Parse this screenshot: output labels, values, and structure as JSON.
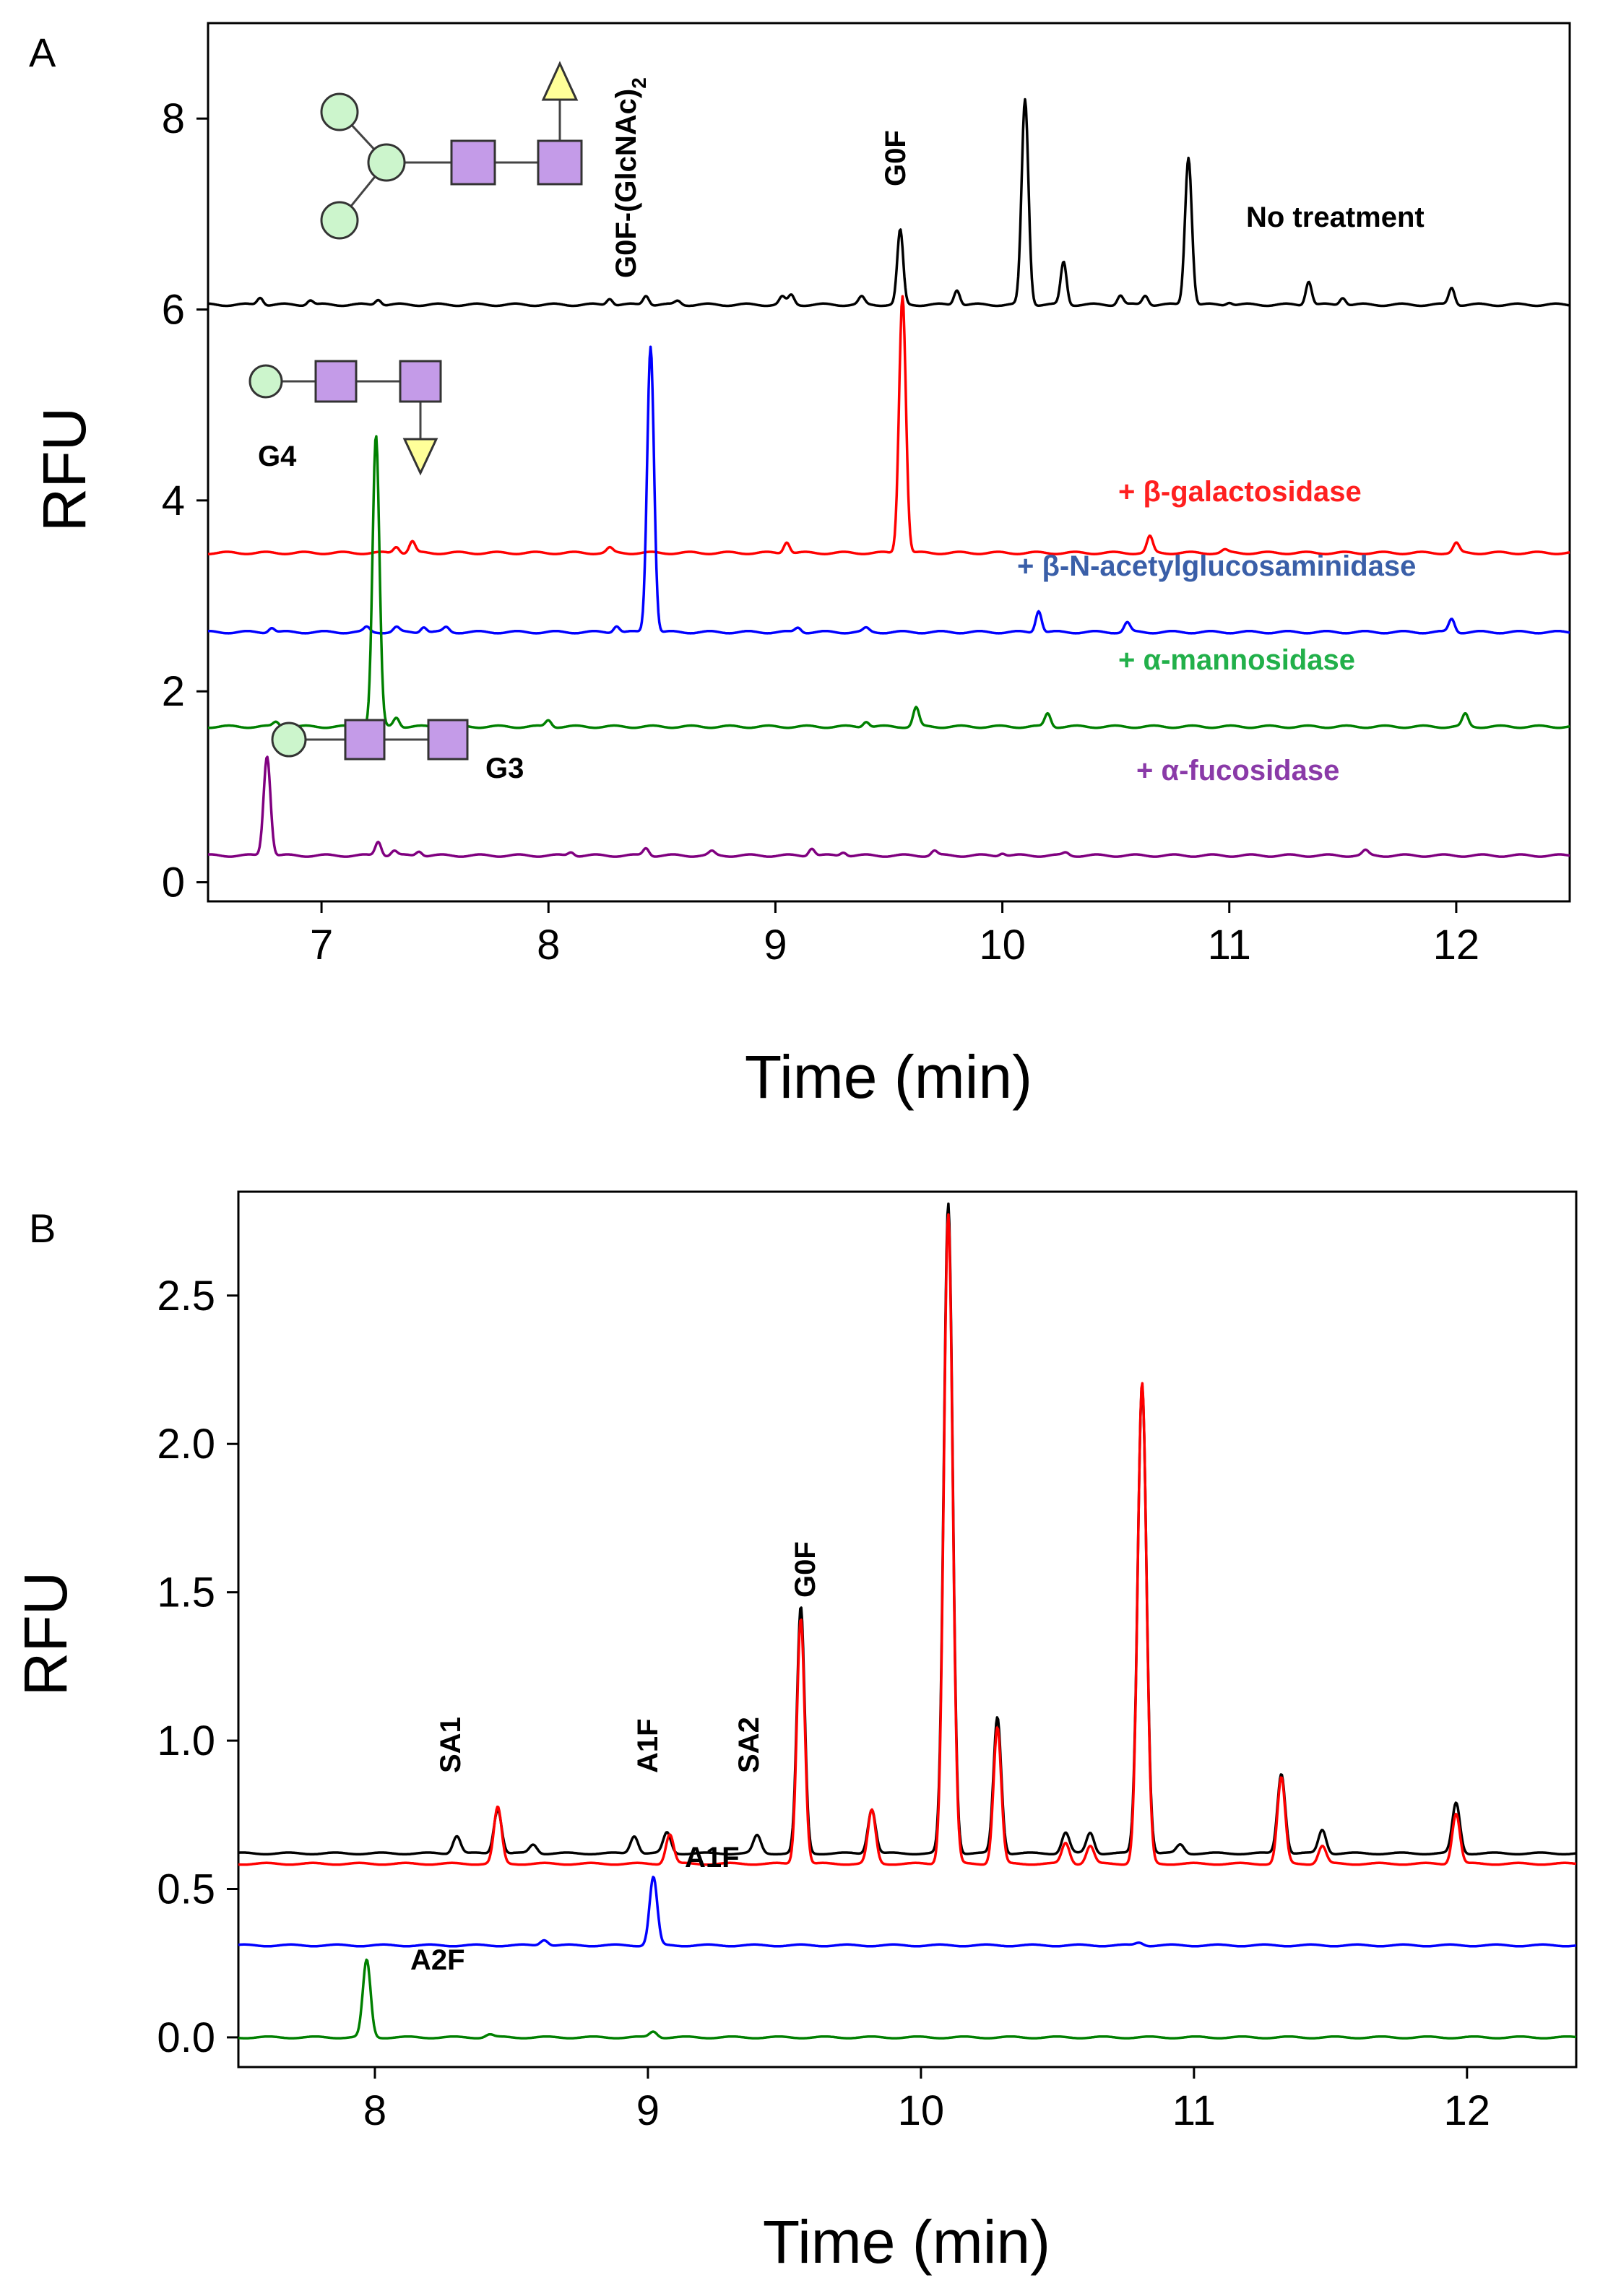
{
  "chart_data": [
    {
      "panel": "A",
      "type": "line",
      "xlabel": "Time (min)",
      "ylabel": "RFU",
      "xlim": [
        6.5,
        12.5
      ],
      "ylim": [
        -0.2,
        9.0
      ],
      "xticks": [
        7,
        8,
        9,
        10,
        11,
        12
      ],
      "yticks": [
        0,
        2,
        4,
        6,
        8
      ],
      "series": [
        {
          "name": "No treatment",
          "color": "#000000",
          "baseline": 6.05,
          "peaks": [
            [
              6.73,
              0.08
            ],
            [
              6.95,
              0.05
            ],
            [
              7.25,
              0.06
            ],
            [
              8.27,
              0.07
            ],
            [
              8.43,
              0.1
            ],
            [
              8.57,
              0.04
            ],
            [
              9.03,
              0.08
            ],
            [
              9.07,
              0.1
            ],
            [
              9.38,
              0.08
            ],
            [
              9.55,
              0.78
            ],
            [
              9.8,
              0.16
            ],
            [
              10.1,
              2.15
            ],
            [
              10.27,
              0.45
            ],
            [
              10.52,
              0.1
            ],
            [
              10.63,
              0.1
            ],
            [
              10.82,
              1.55
            ],
            [
              11.0,
              0.03
            ],
            [
              11.35,
              0.25
            ],
            [
              11.5,
              0.08
            ],
            [
              11.98,
              0.18
            ]
          ]
        },
        {
          "name": "+ β-galactosidase",
          "color": "#ff0000",
          "baseline": 3.45,
          "peaks": [
            [
              7.33,
              0.07
            ],
            [
              7.4,
              0.12
            ],
            [
              8.27,
              0.05
            ],
            [
              9.05,
              0.12
            ],
            [
              9.56,
              2.7
            ],
            [
              10.65,
              0.17
            ],
            [
              10.98,
              0.03
            ],
            [
              12.0,
              0.1
            ]
          ]
        },
        {
          "name": "+ β-N-acetylglucosaminidase",
          "color": "#0000ff",
          "baseline": 2.62,
          "peaks": [
            [
              6.78,
              0.05
            ],
            [
              7.2,
              0.05
            ],
            [
              7.33,
              0.05
            ],
            [
              7.45,
              0.06
            ],
            [
              7.55,
              0.05
            ],
            [
              8.3,
              0.07
            ],
            [
              8.45,
              3.0
            ],
            [
              9.1,
              0.05
            ],
            [
              9.4,
              0.04
            ],
            [
              10.16,
              0.23
            ],
            [
              10.55,
              0.1
            ],
            [
              11.98,
              0.14
            ]
          ]
        },
        {
          "name": "+ α-mannosidase",
          "color": "#008000",
          "baseline": 1.63,
          "peaks": [
            [
              6.8,
              0.05
            ],
            [
              7.24,
              3.05
            ],
            [
              7.33,
              0.1
            ],
            [
              8.0,
              0.07
            ],
            [
              9.4,
              0.06
            ],
            [
              9.62,
              0.2
            ],
            [
              10.2,
              0.14
            ],
            [
              12.04,
              0.13
            ]
          ]
        },
        {
          "name": "+ α-fucosidase",
          "color": "#800080",
          "baseline": 0.28,
          "peaks": [
            [
              6.76,
              1.05
            ],
            [
              7.25,
              0.15
            ],
            [
              7.32,
              0.05
            ],
            [
              7.43,
              0.05
            ],
            [
              8.1,
              0.04
            ],
            [
              8.43,
              0.08
            ],
            [
              8.72,
              0.04
            ],
            [
              9.16,
              0.08
            ],
            [
              9.3,
              0.04
            ],
            [
              9.7,
              0.05
            ],
            [
              10.0,
              0.03
            ],
            [
              10.28,
              0.03
            ],
            [
              11.6,
              0.05
            ]
          ]
        }
      ],
      "annotations": [
        "G0F-(GlcNAc)",
        "2",
        "G0F",
        "No treatment",
        "G4",
        "G3",
        "+ β-galactosidase",
        "+ β-N-acetylglucosaminidase",
        "+ α-mannosidase",
        "+ α-fucosidase"
      ]
    },
    {
      "panel": "B",
      "type": "line",
      "xlabel": "Time (min)",
      "ylabel": "RFU",
      "xlim": [
        7.5,
        12.4
      ],
      "ylim": [
        -0.1,
        2.85
      ],
      "xticks": [
        8,
        9,
        10,
        11,
        12
      ],
      "yticks": [
        "0.0",
        "0.5",
        "1.0",
        "1.5",
        "2.0",
        "2.5"
      ],
      "series": [
        {
          "name": "black trace",
          "color": "#000000",
          "baseline": 0.62,
          "peaks": [
            [
              8.3,
              0.06
            ],
            [
              8.45,
              0.15
            ],
            [
              8.58,
              0.03
            ],
            [
              8.95,
              0.06
            ],
            [
              9.07,
              0.07
            ],
            [
              9.4,
              0.06
            ],
            [
              9.56,
              0.83
            ],
            [
              9.82,
              0.15
            ],
            [
              10.1,
              2.19
            ],
            [
              10.28,
              0.46
            ],
            [
              10.53,
              0.07
            ],
            [
              10.62,
              0.07
            ],
            [
              10.81,
              1.58
            ],
            [
              10.95,
              0.03
            ],
            [
              11.32,
              0.27
            ],
            [
              11.47,
              0.08
            ],
            [
              11.96,
              0.17
            ]
          ]
        },
        {
          "name": "red trace",
          "color": "#ff0000",
          "baseline": 0.585,
          "peaks": [
            [
              8.45,
              0.19
            ],
            [
              9.08,
              0.1
            ],
            [
              9.56,
              0.83
            ],
            [
              9.82,
              0.18
            ],
            [
              10.1,
              2.19
            ],
            [
              10.28,
              0.46
            ],
            [
              10.53,
              0.07
            ],
            [
              10.62,
              0.06
            ],
            [
              10.81,
              1.62
            ],
            [
              11.32,
              0.29
            ],
            [
              11.47,
              0.06
            ],
            [
              11.96,
              0.17
            ]
          ]
        },
        {
          "name": "blue trace",
          "color": "#0000ff",
          "baseline": 0.31,
          "peaks": [
            [
              8.62,
              0.02
            ],
            [
              9.02,
              0.23
            ],
            [
              10.8,
              0.01
            ]
          ]
        },
        {
          "name": "green trace",
          "color": "#008000",
          "baseline": 0.0,
          "peaks": [
            [
              7.97,
              0.26
            ],
            [
              8.42,
              0.01
            ],
            [
              9.02,
              0.02
            ]
          ]
        }
      ],
      "annotations": [
        "SA1",
        "A1F",
        "SA2",
        "G0F",
        "A1F",
        "A2F"
      ]
    }
  ],
  "labels": {
    "panel_a": "A",
    "panel_b": "B",
    "g0f_glcnac_main": "G0F-(GlcNAc)",
    "g0f_glcnac_sub": "2",
    "g0f_a": "G0F",
    "no_treatment": "No treatment",
    "g4": "G4",
    "g3": "G3",
    "beta_gal": "+ β-galactosidase",
    "beta_n": "+ β-N-acetylglucosaminidase",
    "alpha_man": "+ α-mannosidase",
    "alpha_fuc": "+ α-fucosidase",
    "sa1": "SA1",
    "a1f_top": "A1F",
    "sa2": "SA2",
    "g0f_b": "G0F",
    "a1f_blue": "A1F",
    "a2f": "A2F"
  }
}
